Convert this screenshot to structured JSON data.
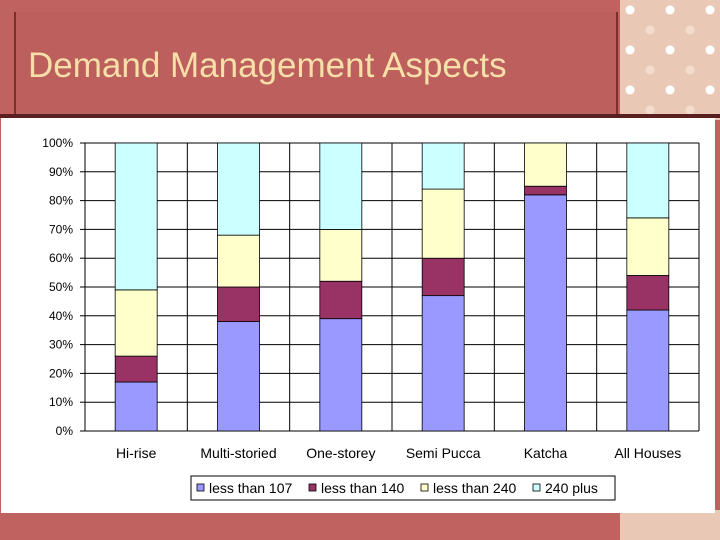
{
  "slide": {
    "title": "Demand Management Aspects"
  },
  "colors": {
    "background": "#c0625f",
    "title_text": "#f6dfa8",
    "series": [
      "#9999ff",
      "#993366",
      "#ffffcc",
      "#ccffff"
    ]
  },
  "chart_data": {
    "type": "bar",
    "stacked": true,
    "percent_stacked": true,
    "categories": [
      "Hi-rise",
      "Multi-storied",
      "One-storey",
      "Semi Pucca",
      "Katcha",
      "All Houses"
    ],
    "series": [
      {
        "name": "less than 107",
        "values": [
          17,
          38,
          39,
          47,
          82,
          42
        ]
      },
      {
        "name": "less than 140",
        "values": [
          9,
          12,
          13,
          13,
          3,
          12
        ]
      },
      {
        "name": "less than 240",
        "values": [
          23,
          18,
          18,
          24,
          15,
          20
        ]
      },
      {
        "name": "240 plus",
        "values": [
          51,
          32,
          30,
          16,
          0,
          26
        ]
      }
    ],
    "y_ticks": [
      "0%",
      "10%",
      "20%",
      "30%",
      "40%",
      "50%",
      "60%",
      "70%",
      "80%",
      "90%",
      "100%"
    ],
    "ylim": [
      0,
      100
    ],
    "grid": true,
    "legend_position": "bottom"
  }
}
